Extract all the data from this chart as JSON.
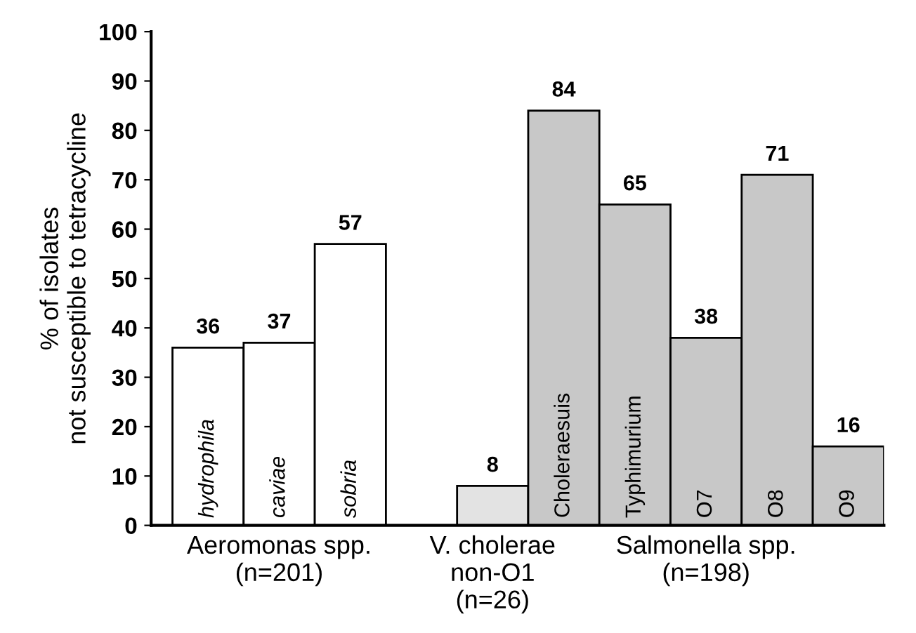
{
  "chart_data": {
    "type": "bar",
    "categories": [
      "hydrophila",
      "caviae",
      "sobria",
      null,
      null,
      "Choleraesuis",
      "Typhimurium",
      "O7",
      "O8",
      "O9"
    ],
    "values": [
      36,
      37,
      57,
      null,
      8,
      84,
      65,
      38,
      71,
      16
    ],
    "colors": [
      "#ffffff",
      "#ffffff",
      "#ffffff",
      "#ffffff",
      "#e3e3e3",
      "#c8c8c8",
      "#c8c8c8",
      "#c8c8c8",
      "#c8c8c8",
      "#c8c8c8"
    ],
    "ylabel": "% of isolates\nnot susceptible to tetracycline",
    "ylim": [
      0,
      100
    ],
    "yticks": [
      0,
      10,
      20,
      30,
      40,
      50,
      60,
      70,
      80,
      90,
      100
    ],
    "data_labels": true,
    "grid": false,
    "annotations": [
      "Aeromonas spp.\n(n=201)",
      "V. cholerae\nnon-O1\n(n=26)",
      "Salmonella spp.\n(n=198)"
    ]
  }
}
